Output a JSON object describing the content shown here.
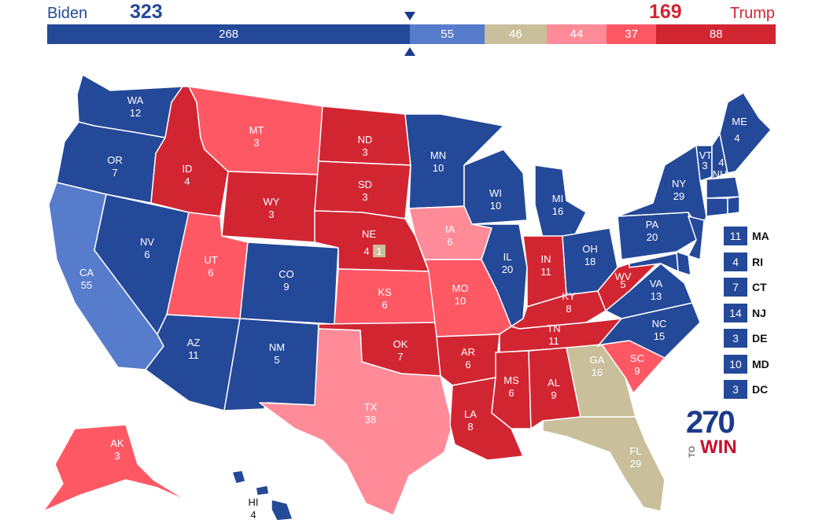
{
  "header": {
    "left_candidate": "Biden",
    "left_total": "323",
    "right_candidate": "Trump",
    "right_total": "169"
  },
  "colors": {
    "safe_dem": "#244999",
    "likely_dem": "#577ccc",
    "tossup": "#c9c09b",
    "leans_rep": "#ff8b98",
    "likely_rep": "#ff5865",
    "safe_rep": "#d22532"
  },
  "bar_segments": [
    {
      "value": "268",
      "rating": "safe_dem"
    },
    {
      "value": "55",
      "rating": "likely_dem"
    },
    {
      "value": "46",
      "rating": "tossup"
    },
    {
      "value": "44",
      "rating": "leans_rep"
    },
    {
      "value": "37",
      "rating": "likely_rep"
    },
    {
      "value": "88",
      "rating": "safe_rep"
    }
  ],
  "states": {
    "WA": {
      "abbr": "WA",
      "votes": "12",
      "rating": "safe_dem"
    },
    "OR": {
      "abbr": "OR",
      "votes": "7",
      "rating": "safe_dem"
    },
    "CA": {
      "abbr": "CA",
      "votes": "55",
      "rating": "likely_dem"
    },
    "NV": {
      "abbr": "NV",
      "votes": "6",
      "rating": "safe_dem"
    },
    "ID": {
      "abbr": "ID",
      "votes": "4",
      "rating": "safe_rep"
    },
    "MT": {
      "abbr": "MT",
      "votes": "3",
      "rating": "likely_rep"
    },
    "WY": {
      "abbr": "WY",
      "votes": "3",
      "rating": "safe_rep"
    },
    "UT": {
      "abbr": "UT",
      "votes": "6",
      "rating": "likely_rep"
    },
    "AZ": {
      "abbr": "AZ",
      "votes": "11",
      "rating": "safe_dem"
    },
    "CO": {
      "abbr": "CO",
      "votes": "9",
      "rating": "safe_dem"
    },
    "NM": {
      "abbr": "NM",
      "votes": "5",
      "rating": "safe_dem"
    },
    "ND": {
      "abbr": "ND",
      "votes": "3",
      "rating": "safe_rep"
    },
    "SD": {
      "abbr": "SD",
      "votes": "3",
      "rating": "safe_rep"
    },
    "NE": {
      "abbr": "NE",
      "votes": "4",
      "rating": "safe_rep",
      "district_votes": "1",
      "district_rating": "tossup"
    },
    "KS": {
      "abbr": "KS",
      "votes": "6",
      "rating": "likely_rep"
    },
    "OK": {
      "abbr": "OK",
      "votes": "7",
      "rating": "safe_rep"
    },
    "TX": {
      "abbr": "TX",
      "votes": "38",
      "rating": "leans_rep"
    },
    "MN": {
      "abbr": "MN",
      "votes": "10",
      "rating": "safe_dem"
    },
    "IA": {
      "abbr": "IA",
      "votes": "6",
      "rating": "leans_rep"
    },
    "MO": {
      "abbr": "MO",
      "votes": "10",
      "rating": "likely_rep"
    },
    "AR": {
      "abbr": "AR",
      "votes": "6",
      "rating": "safe_rep"
    },
    "LA": {
      "abbr": "LA",
      "votes": "8",
      "rating": "safe_rep"
    },
    "WI": {
      "abbr": "WI",
      "votes": "10",
      "rating": "safe_dem"
    },
    "IL": {
      "abbr": "IL",
      "votes": "20",
      "rating": "safe_dem"
    },
    "MI": {
      "abbr": "MI",
      "votes": "16",
      "rating": "safe_dem"
    },
    "IN": {
      "abbr": "IN",
      "votes": "11",
      "rating": "safe_rep"
    },
    "OH": {
      "abbr": "OH",
      "votes": "18",
      "rating": "safe_dem"
    },
    "KY": {
      "abbr": "KY",
      "votes": "8",
      "rating": "safe_rep"
    },
    "TN": {
      "abbr": "TN",
      "votes": "11",
      "rating": "safe_rep"
    },
    "MS": {
      "abbr": "MS",
      "votes": "6",
      "rating": "safe_rep"
    },
    "AL": {
      "abbr": "AL",
      "votes": "9",
      "rating": "safe_rep"
    },
    "GA": {
      "abbr": "GA",
      "votes": "16",
      "rating": "tossup"
    },
    "FL": {
      "abbr": "FL",
      "votes": "29",
      "rating": "tossup"
    },
    "SC": {
      "abbr": "SC",
      "votes": "9",
      "rating": "likely_rep"
    },
    "NC": {
      "abbr": "NC",
      "votes": "15",
      "rating": "safe_dem"
    },
    "VA": {
      "abbr": "VA",
      "votes": "13",
      "rating": "safe_dem"
    },
    "WV": {
      "abbr": "WV",
      "votes": "5",
      "rating": "safe_rep"
    },
    "PA": {
      "abbr": "PA",
      "votes": "20",
      "rating": "safe_dem"
    },
    "NY": {
      "abbr": "NY",
      "votes": "29",
      "rating": "safe_dem"
    },
    "VT": {
      "abbr": "VT",
      "votes": "3",
      "rating": "safe_dem"
    },
    "NH": {
      "abbr": "NH",
      "votes": "4",
      "rating": "safe_dem"
    },
    "ME": {
      "abbr": "ME",
      "votes": "4",
      "rating": "safe_dem"
    },
    "AK": {
      "abbr": "AK",
      "votes": "3",
      "rating": "likely_rep"
    },
    "HI": {
      "abbr": "HI",
      "votes": "4",
      "rating": "safe_dem"
    }
  },
  "small_states": [
    {
      "abbr": "MA",
      "votes": "11",
      "rating": "safe_dem"
    },
    {
      "abbr": "RI",
      "votes": "4",
      "rating": "safe_dem"
    },
    {
      "abbr": "CT",
      "votes": "7",
      "rating": "safe_dem"
    },
    {
      "abbr": "NJ",
      "votes": "14",
      "rating": "safe_dem"
    },
    {
      "abbr": "DE",
      "votes": "3",
      "rating": "safe_dem"
    },
    {
      "abbr": "MD",
      "votes": "10",
      "rating": "safe_dem"
    },
    {
      "abbr": "DC",
      "votes": "3",
      "rating": "safe_dem"
    }
  ],
  "logo": {
    "number": "270",
    "to": "TO",
    "win": "WIN"
  }
}
